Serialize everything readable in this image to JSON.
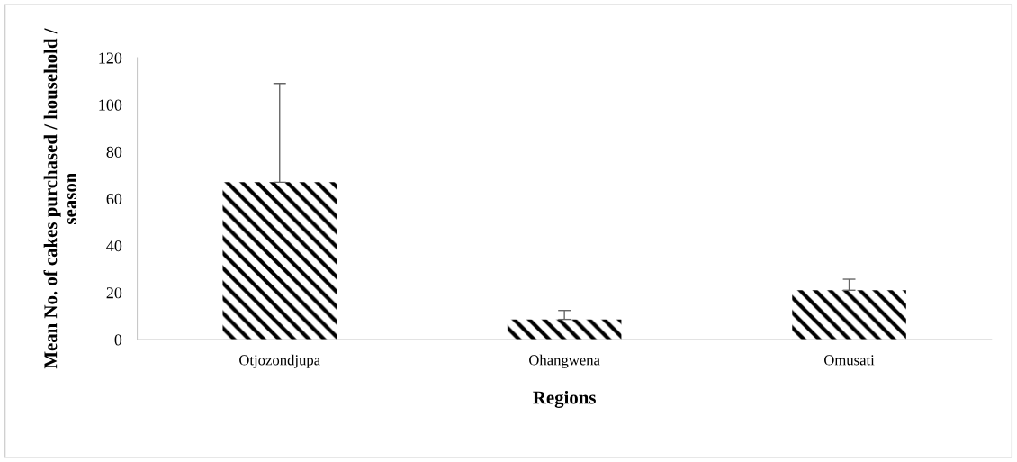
{
  "chart_data": {
    "type": "bar",
    "xlabel": "Regions",
    "ylabel": "Mean No. of cakes purchased / household / season",
    "categories": [
      "Otjozondjupa",
      "Ohangwena",
      "Omusati"
    ],
    "values": [
      67,
      8.6,
      21
    ],
    "errors": [
      [
        67,
        109
      ],
      [
        8.6,
        12.4
      ],
      [
        21,
        25.7
      ]
    ],
    "color": "#000000",
    "ylim": [
      0,
      120
    ],
    "yticks": [
      0,
      20,
      40,
      60,
      80,
      100,
      120
    ],
    "grid": false,
    "legend": false
  }
}
